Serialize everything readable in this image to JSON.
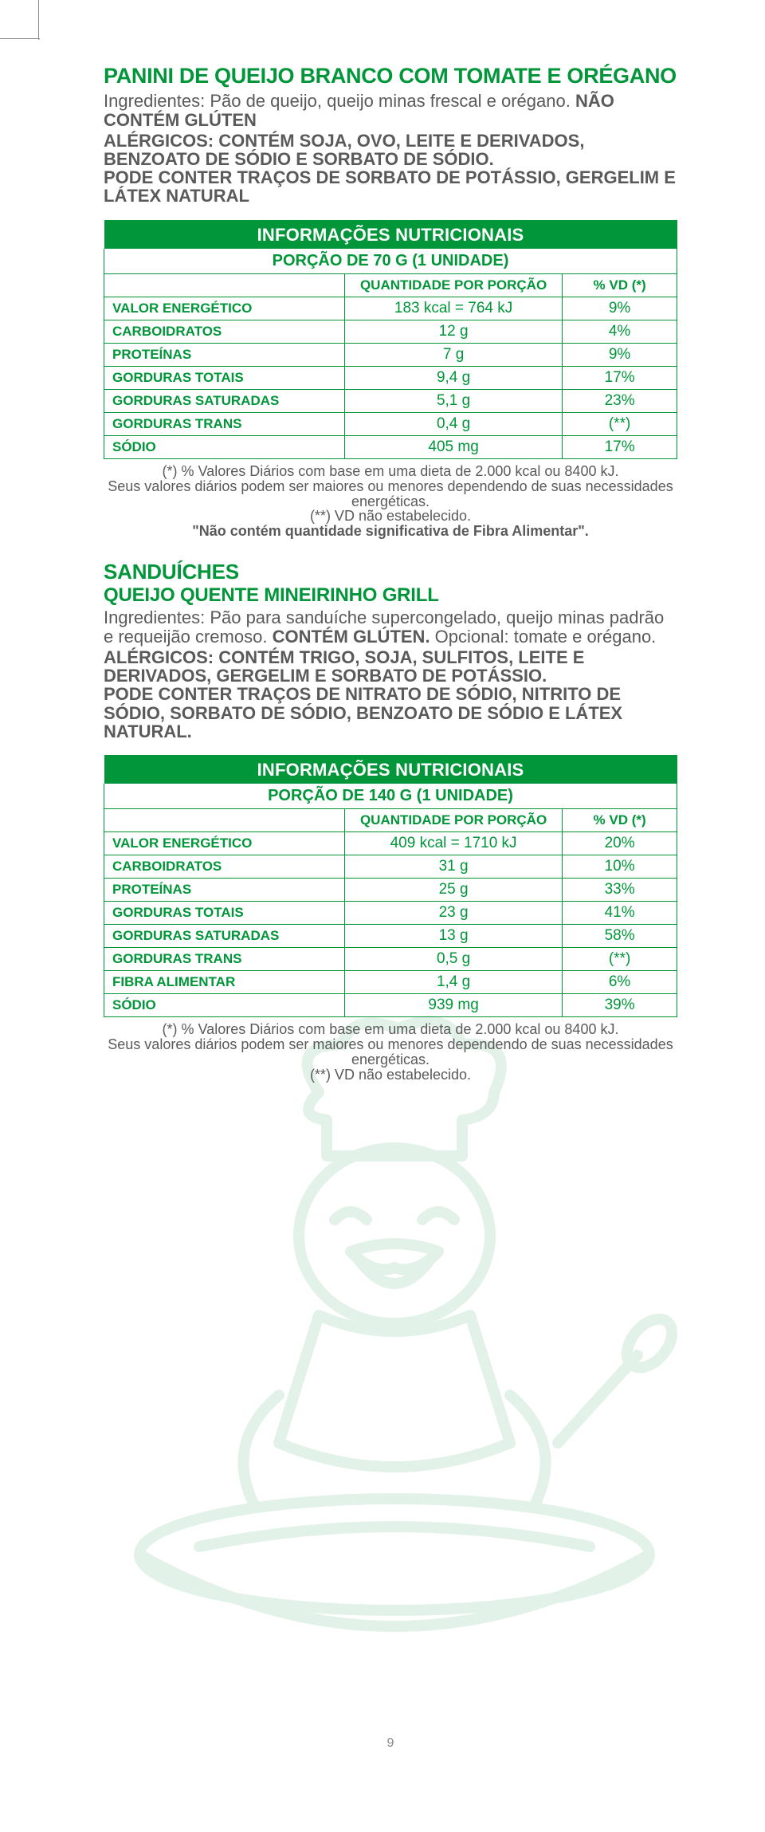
{
  "colors": {
    "green": "#009639",
    "text_gray": "#5a5a5a",
    "watermark_green": "#7fc99a"
  },
  "item1": {
    "title": "PANINI DE QUEIJO BRANCO COM TOMATE E ORÉGANO",
    "ingredients_lead": "Ingredientes: ",
    "ingredients": "Pão de queijo, queijo minas frescal e orégano.",
    "no_gluten": "NÃO CONTÉM GLÚTEN",
    "allergens": "ALÉRGICOS: CONTÉM SOJA, OVO, LEITE E DERIVADOS, BENZOATO DE SÓDIO E SORBATO DE SÓDIO.",
    "may_contain": "PODE CONTER TRAÇOS DE SORBATO DE POTÁSSIO, GERGELIM E LÁTEX NATURAL",
    "table": {
      "header1": "INFORMAÇÕES NUTRICIONAIS",
      "header2": "PORÇÃO DE 70 G (1 UNIDADE)",
      "col_blank": "",
      "col_qty": "QUANTIDADE POR PORÇÃO",
      "col_vd": "% VD (*)",
      "rows": [
        {
          "label": "VALOR ENERGÉTICO",
          "qty": "183 kcal = 764 kJ",
          "vd": "9%"
        },
        {
          "label": "CARBOIDRATOS",
          "qty": "12 g",
          "vd": "4%"
        },
        {
          "label": "PROTEÍNAS",
          "qty": "7 g",
          "vd": "9%"
        },
        {
          "label": "GORDURAS TOTAIS",
          "qty": "9,4 g",
          "vd": "17%"
        },
        {
          "label": "GORDURAS SATURADAS",
          "qty": "5,1 g",
          "vd": "23%"
        },
        {
          "label": "GORDURAS TRANS",
          "qty": "0,4 g",
          "vd": "(**)"
        },
        {
          "label": "SÓDIO",
          "qty": "405 mg",
          "vd": "17%"
        }
      ]
    },
    "footnote_l1": "(*) % Valores Diários com base em uma dieta de 2.000 kcal ou 8400 kJ.",
    "footnote_l2": "Seus valores diários podem ser maiores ou menores dependendo de suas necessidades energéticas.",
    "footnote_l3": "(**) VD não estabelecido.",
    "footnote_extra": "\"Não contém quantidade significativa de Fibra Alimentar\"."
  },
  "item2": {
    "category": "SANDUÍCHES",
    "title": "QUEIJO QUENTE MINEIRINHO GRILL",
    "ingredients_lead": "Ingredientes: ",
    "ingredients": "Pão para sanduíche supercongelado, queijo minas padrão e requeijão cremoso. ",
    "gluten": "CONTÉM GLÚTEN.",
    "optional": " Opcional: tomate e orégano.",
    "allergens": "ALÉRGICOS: CONTÉM TRIGO, SOJA, SULFITOS, LEITE E DERIVADOS, GERGELIM E SORBATO DE POTÁSSIO.",
    "may_contain": "PODE CONTER TRAÇOS DE NITRATO DE SÓDIO, NITRITO DE SÓDIO, SORBATO DE SÓDIO, BENZOATO DE SÓDIO E LÁTEX NATURAL.",
    "table": {
      "header1": "INFORMAÇÕES NUTRICIONAIS",
      "header2": "PORÇÃO DE 140 G (1 UNIDADE)",
      "col_blank": "",
      "col_qty": "QUANTIDADE POR PORÇÃO",
      "col_vd": "% VD (*)",
      "rows": [
        {
          "label": "VALOR ENERGÉTICO",
          "qty": "409 kcal = 1710 kJ",
          "vd": "20%"
        },
        {
          "label": "CARBOIDRATOS",
          "qty": "31 g",
          "vd": "10%"
        },
        {
          "label": "PROTEÍNAS",
          "qty": "25 g",
          "vd": "33%"
        },
        {
          "label": "GORDURAS TOTAIS",
          "qty": "23 g",
          "vd": "41%"
        },
        {
          "label": "GORDURAS SATURADAS",
          "qty": "13 g",
          "vd": "58%"
        },
        {
          "label": "GORDURAS TRANS",
          "qty": "0,5 g",
          "vd": "(**)"
        },
        {
          "label": "FIBRA ALIMENTAR",
          "qty": "1,4 g",
          "vd": "6%"
        },
        {
          "label": "SÓDIO",
          "qty": "939 mg",
          "vd": "39%"
        }
      ]
    },
    "footnote_l1": "(*) % Valores Diários com base em uma dieta de 2.000 kcal ou 8400 kJ.",
    "footnote_l2": "Seus valores diários podem ser maiores ou menores dependendo de suas necessidades energéticas.",
    "footnote_l3": "(**) VD não estabelecido."
  },
  "page_number": "9"
}
